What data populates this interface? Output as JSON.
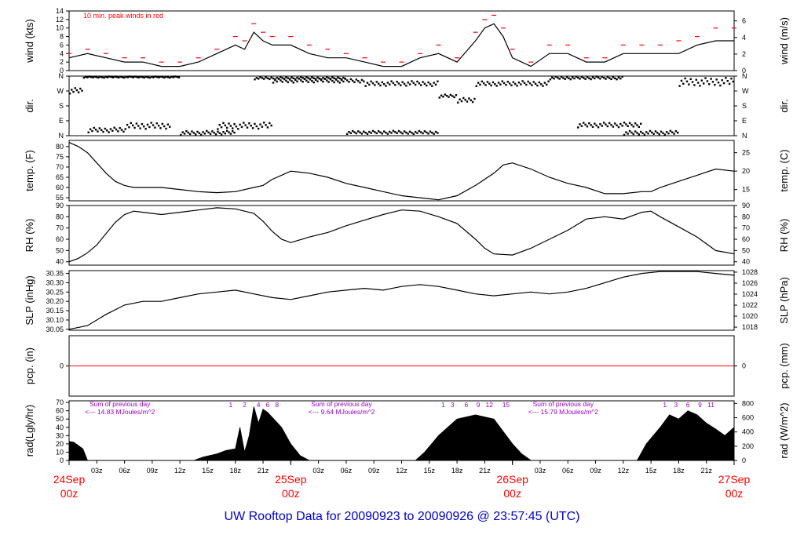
{
  "title": "UW Rooftop Data for 20090923  to  20090926 @ 23:57:45  (UTC)",
  "colors": {
    "series": "#000000",
    "peak": "#ff0000",
    "precip": "#ff0000",
    "purple": "#9900cc",
    "date": "#ff0000",
    "title": "#0000cc"
  },
  "x_axis": {
    "hour_ticks": [
      "03z",
      "06z",
      "09z",
      "12z",
      "15z",
      "18z",
      "21z",
      "",
      "03z",
      "06z",
      "09z",
      "12z",
      "15z",
      "18z",
      "21z",
      "",
      "03z",
      "06z",
      "09z",
      "12z",
      "15z",
      "18z",
      "21z"
    ],
    "date_labels": [
      {
        "hour": 0,
        "date": "24Sep",
        "time": "00z"
      },
      {
        "hour": 24,
        "date": "25Sep",
        "time": "00z"
      },
      {
        "hour": 48,
        "date": "26Sep",
        "time": "00z"
      },
      {
        "hour": 72,
        "date": "27Sep",
        "time": "00z"
      }
    ],
    "range_hours": [
      0,
      72
    ]
  },
  "chart_data": [
    {
      "type": "line",
      "id": "wind",
      "ylabel": "wind (kts)",
      "ylabel_right": "wind (m/s)",
      "annotation": "10 min. peak winds in red",
      "ylim": [
        0,
        14
      ],
      "yticks": [
        0,
        2,
        4,
        6,
        8,
        10,
        12,
        14
      ],
      "right_ticks": [
        0,
        2,
        4,
        6
      ],
      "right_scale": 1.944,
      "x_hours": [
        0,
        2,
        4,
        6,
        8,
        10,
        12,
        14,
        16,
        18,
        19,
        20,
        21,
        22,
        24,
        26,
        28,
        30,
        32,
        34,
        36,
        38,
        40,
        42,
        44,
        45,
        46,
        47,
        48,
        50,
        52,
        54,
        56,
        58,
        60,
        62,
        64,
        66,
        68,
        70,
        72
      ],
      "values": [
        3,
        4,
        3,
        2,
        2,
        1,
        1,
        2,
        4,
        6,
        5,
        9,
        7,
        6,
        6,
        4,
        3,
        3,
        2,
        1,
        1,
        3,
        4,
        2,
        7,
        10,
        11,
        8,
        3,
        1,
        4,
        4,
        2,
        2,
        4,
        4,
        4,
        4,
        6,
        7,
        7
      ],
      "peak_values": [
        4,
        5,
        4,
        3,
        3,
        2,
        2,
        3,
        5,
        8,
        7,
        11,
        9,
        8,
        8,
        6,
        5,
        4,
        3,
        2,
        2,
        4,
        6,
        3,
        9,
        12,
        13,
        10,
        5,
        2,
        6,
        6,
        3,
        3,
        6,
        6,
        6,
        7,
        8,
        10,
        10
      ]
    },
    {
      "type": "scatter",
      "id": "dir",
      "ylabel": "dir.",
      "ylabel_right": "dir.",
      "ylim": [
        0,
        360
      ],
      "tick_labels": [
        "N",
        "E",
        "S",
        "W",
        "N"
      ],
      "tick_values": [
        0,
        90,
        180,
        270,
        360
      ],
      "segments": [
        {
          "x": [
            0,
            1.5
          ],
          "y": [
            255,
            290
          ]
        },
        {
          "x": [
            1.5,
            12
          ],
          "y": [
            350,
            358
          ]
        },
        {
          "x": [
            2,
            6
          ],
          "y": [
            20,
            50
          ]
        },
        {
          "x": [
            6,
            11
          ],
          "y": [
            40,
            80
          ]
        },
        {
          "x": [
            12,
            18
          ],
          "y": [
            5,
            30
          ]
        },
        {
          "x": [
            16,
            22
          ],
          "y": [
            40,
            80
          ]
        },
        {
          "x": [
            20,
            30
          ],
          "y": [
            340,
            355
          ]
        },
        {
          "x": [
            22,
            32
          ],
          "y": [
            320,
            345
          ]
        },
        {
          "x": [
            30,
            40
          ],
          "y": [
            10,
            30
          ]
        },
        {
          "x": [
            32,
            40
          ],
          "y": [
            300,
            330
          ]
        },
        {
          "x": [
            40,
            42
          ],
          "y": [
            230,
            250
          ]
        },
        {
          "x": [
            42,
            44
          ],
          "y": [
            200,
            230
          ]
        },
        {
          "x": [
            44,
            52
          ],
          "y": [
            300,
            330
          ]
        },
        {
          "x": [
            52,
            60
          ],
          "y": [
            340,
            358
          ]
        },
        {
          "x": [
            55,
            62
          ],
          "y": [
            50,
            80
          ]
        },
        {
          "x": [
            60,
            66
          ],
          "y": [
            5,
            30
          ]
        },
        {
          "x": [
            66,
            72
          ],
          "y": [
            300,
            350
          ]
        }
      ]
    },
    {
      "type": "line",
      "id": "temp",
      "ylabel": "temp. (F)",
      "ylabel_right": "temp. (C)",
      "ylim": [
        53.5,
        83
      ],
      "yticks": [
        55,
        60,
        65,
        70,
        75,
        80
      ],
      "right_ticks": [
        15,
        20,
        25
      ],
      "x_hours": [
        0,
        1,
        2,
        3,
        4,
        5,
        6,
        7,
        8,
        10,
        12,
        14,
        16,
        18,
        20,
        21,
        22,
        23,
        24,
        26,
        28,
        30,
        32,
        34,
        36,
        38,
        40,
        42,
        44,
        46,
        47,
        48,
        50,
        52,
        54,
        56,
        58,
        60,
        62,
        63,
        64,
        66,
        68,
        70,
        72
      ],
      "values": [
        82,
        80,
        77,
        72,
        67,
        63,
        61,
        60,
        60,
        60,
        59,
        58,
        57.5,
        58,
        60,
        61,
        64,
        66,
        68,
        67,
        65,
        62,
        60,
        58,
        56,
        55,
        54,
        56,
        61,
        67,
        71,
        72,
        69,
        65,
        62,
        60,
        57,
        57,
        58,
        58,
        60,
        63,
        66,
        69,
        68
      ]
    },
    {
      "type": "line",
      "id": "rh",
      "ylabel": "RH (%)",
      "ylabel_right": "RH (%)",
      "ylim": [
        37,
        90
      ],
      "yticks": [
        40,
        50,
        60,
        70,
        80,
        90
      ],
      "right_ticks": [
        40,
        50,
        60,
        70,
        80,
        90
      ],
      "x_hours": [
        0,
        1,
        2,
        3,
        4,
        5,
        6,
        7,
        8,
        10,
        12,
        14,
        16,
        18,
        19,
        20,
        21,
        22,
        23,
        24,
        26,
        28,
        30,
        32,
        34,
        36,
        38,
        40,
        42,
        44,
        45,
        46,
        48,
        50,
        52,
        54,
        56,
        58,
        60,
        62,
        63,
        64,
        66,
        68,
        70,
        72
      ],
      "values": [
        40,
        43,
        48,
        55,
        65,
        75,
        82,
        85,
        84,
        82,
        84,
        86,
        88,
        87,
        85,
        83,
        76,
        67,
        60,
        57,
        62,
        66,
        72,
        77,
        82,
        86,
        85,
        80,
        74,
        60,
        52,
        47,
        46,
        52,
        60,
        68,
        78,
        80,
        78,
        84,
        85,
        80,
        71,
        62,
        50,
        47
      ]
    },
    {
      "type": "line",
      "id": "slp",
      "ylabel": "SLP (inHg)",
      "ylabel_right": "SLP (hPa)",
      "ylim": [
        30.045,
        30.365
      ],
      "yticks": [
        30.05,
        30.1,
        30.15,
        30.2,
        30.25,
        30.3,
        30.35
      ],
      "right_ticks": [
        1018,
        1020,
        1022,
        1024,
        1026,
        1028
      ],
      "x_hours": [
        0,
        2,
        4,
        6,
        8,
        10,
        12,
        14,
        16,
        18,
        20,
        22,
        24,
        26,
        28,
        30,
        32,
        34,
        36,
        38,
        40,
        42,
        44,
        46,
        48,
        50,
        52,
        54,
        56,
        58,
        60,
        62,
        64,
        66,
        68,
        70,
        72
      ],
      "values": [
        30.05,
        30.07,
        30.13,
        30.18,
        30.2,
        30.2,
        30.22,
        30.24,
        30.25,
        30.26,
        30.24,
        30.22,
        30.21,
        30.23,
        30.25,
        30.26,
        30.27,
        30.26,
        30.28,
        30.29,
        30.28,
        30.26,
        30.24,
        30.23,
        30.24,
        30.25,
        30.24,
        30.25,
        30.27,
        30.3,
        30.33,
        30.35,
        30.36,
        30.36,
        30.36,
        30.35,
        30.34
      ]
    },
    {
      "type": "line",
      "id": "pcp",
      "ylabel": "pcp. (in)",
      "ylabel_right": "pcp. (mm)",
      "ylim": [
        -1,
        1
      ],
      "yticks": [
        0
      ],
      "right_ticks": [
        0
      ],
      "x_hours": [
        0,
        72
      ],
      "values": [
        0,
        0
      ]
    },
    {
      "type": "area",
      "id": "rad",
      "ylabel": "rad(Lgly/hr)",
      "ylabel_right": "rad (W/m^2)",
      "ylim": [
        0,
        72
      ],
      "yticks": [
        0,
        10,
        20,
        30,
        40,
        50,
        60,
        70
      ],
      "right_ticks": [
        0,
        200,
        400,
        600,
        800
      ],
      "right_scale": 0.086,
      "x_hours": [
        0,
        0.5,
        1.5,
        2,
        13.5,
        14.5,
        16,
        17,
        18,
        18.5,
        19,
        19.5,
        20,
        20.5,
        21,
        21.5,
        22,
        23,
        24,
        25,
        26,
        37.5,
        38.5,
        40,
        42,
        44,
        46,
        47,
        48,
        49,
        50,
        61.5,
        62.5,
        64,
        65,
        66,
        67,
        68,
        69,
        70,
        71,
        72
      ],
      "values": [
        23,
        22,
        14,
        0,
        0,
        4,
        8,
        12,
        14,
        40,
        10,
        30,
        65,
        45,
        62,
        58,
        52,
        40,
        20,
        6,
        0,
        0,
        10,
        30,
        50,
        55,
        50,
        35,
        20,
        8,
        0,
        0,
        20,
        40,
        55,
        50,
        60,
        55,
        45,
        38,
        30,
        40
      ],
      "annotations": [
        {
          "hour": 5.5,
          "line1": "Sum of previous day",
          "line2": "<--- 14.83 MJoules/m^2"
        },
        {
          "hour": 29.5,
          "line1": "Sum of previous day",
          "line2": "<--- 9.64 MJoules/m^2"
        },
        {
          "hour": 53.5,
          "line1": "Sum of previous day",
          "line2": "<--- 15.79 MJoules/m^2"
        }
      ],
      "hour_labels": [
        {
          "hour": 17.5,
          "text": "1"
        },
        {
          "hour": 19,
          "text": "2"
        },
        {
          "hour": 20.5,
          "text": "4"
        },
        {
          "hour": 21.5,
          "text": "6"
        },
        {
          "hour": 22.5,
          "text": "8"
        },
        {
          "hour": 40.5,
          "text": "1"
        },
        {
          "hour": 41.5,
          "text": "3"
        },
        {
          "hour": 43,
          "text": "6"
        },
        {
          "hour": 44.3,
          "text": "9"
        },
        {
          "hour": 45.5,
          "text": "12"
        },
        {
          "hour": 47.3,
          "text": "15"
        },
        {
          "hour": 64.5,
          "text": "1"
        },
        {
          "hour": 65.7,
          "text": "3"
        },
        {
          "hour": 67,
          "text": "6"
        },
        {
          "hour": 68.3,
          "text": "9"
        },
        {
          "hour": 69.5,
          "text": "11"
        }
      ]
    }
  ]
}
